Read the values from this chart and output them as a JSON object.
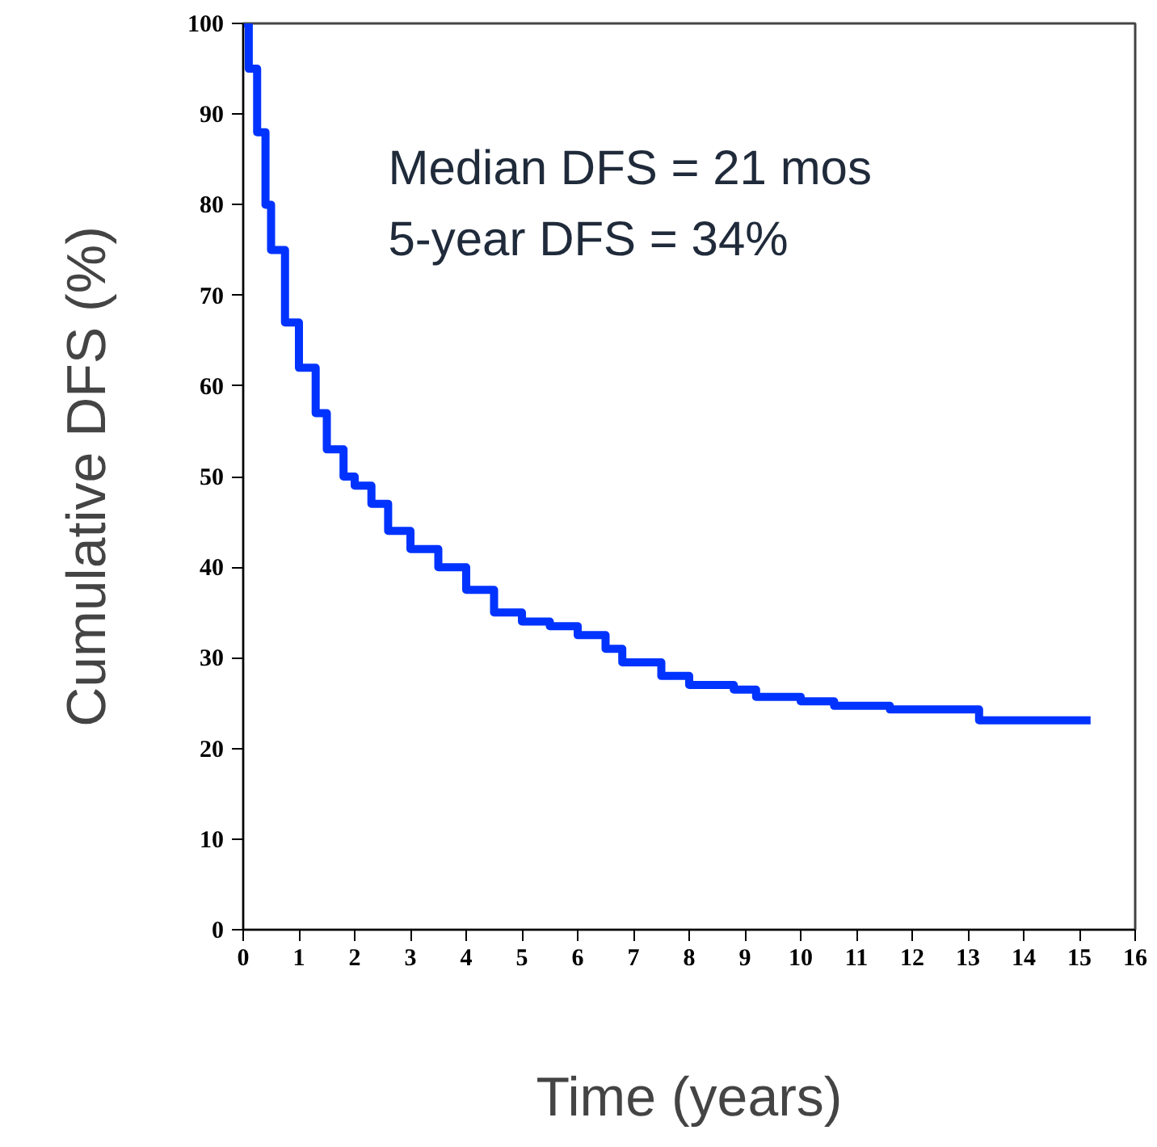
{
  "chart_data": {
    "type": "step",
    "xlabel": "Time (years)",
    "ylabel": "Cumulative DFS (%)",
    "annotations": [
      "Median DFS = 21 mos",
      "5-year DFS = 34%"
    ],
    "x": [
      0,
      0.1,
      0.25,
      0.4,
      0.5,
      0.75,
      1.0,
      1.3,
      1.5,
      1.8,
      2.0,
      2.3,
      2.6,
      3.0,
      3.5,
      4.0,
      4.5,
      5.0,
      5.5,
      6.0,
      6.5,
      6.8,
      7.5,
      8.0,
      8.8,
      9.2,
      10.0,
      10.6,
      11.6,
      13.2,
      15.2
    ],
    "series": [
      {
        "color": "#0033ff",
        "values": [
          100,
          95,
          88,
          80,
          75,
          67,
          62,
          57,
          53,
          50,
          49,
          47,
          44,
          42,
          40,
          37.5,
          35,
          34,
          33.5,
          32.5,
          31,
          29.5,
          28,
          27,
          26.5,
          25.7,
          25.2,
          24.7,
          24.3,
          23.1,
          23.1
        ]
      }
    ],
    "xlim": [
      0,
      16
    ],
    "ylim": [
      0,
      100
    ],
    "xticks": [
      0,
      1,
      2,
      3,
      4,
      5,
      6,
      7,
      8,
      9,
      10,
      11,
      12,
      13,
      14,
      15,
      16
    ],
    "yticks": [
      0,
      10,
      20,
      30,
      40,
      50,
      60,
      70,
      80,
      90,
      100
    ],
    "grid": false,
    "line_style": "solid",
    "marker": "none"
  }
}
